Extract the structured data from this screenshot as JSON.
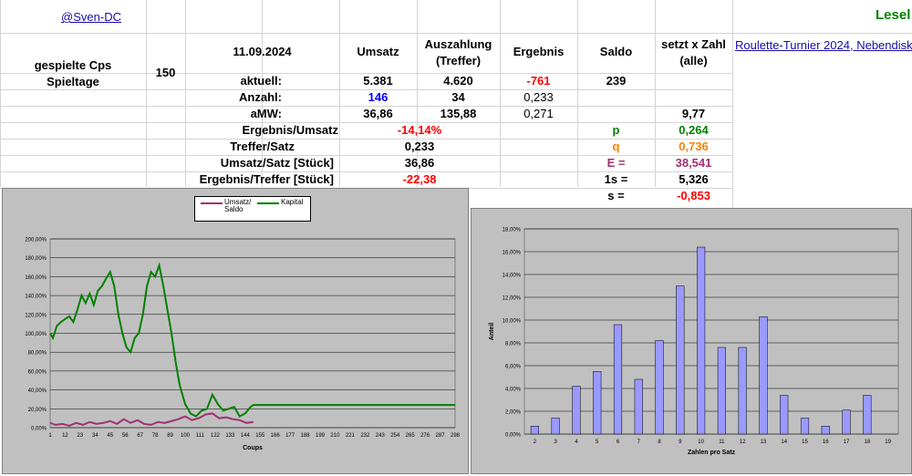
{
  "header": {
    "user_link": "@Sven-DC",
    "lese_label": "Lesel",
    "tournament_link": "Roulette-Turnier 2024, Nebendisk"
  },
  "left_block": {
    "played_label": "gespielte Cps",
    "days_label": "Spieltage",
    "played_value": "150"
  },
  "columns": {
    "date": "11.09.2024",
    "umsatz": "Umsatz",
    "auszahlung_line1": "Auszahlung",
    "auszahlung_line2": "(Treffer)",
    "ergebnis": "Ergebnis",
    "saldo": "Saldo",
    "setzt_line1": "setzt x Zahl",
    "setzt_line2": "(alle)"
  },
  "rows": {
    "aktuell": {
      "label": "aktuell:",
      "umsatz": "5.381",
      "auszahlung": "4.620",
      "ergebnis": "-761",
      "saldo": "239"
    },
    "anzahl": {
      "label": "Anzahl:",
      "umsatz": "146",
      "auszahlung": "34",
      "ergebnis": "0,233"
    },
    "amw": {
      "label": "aMW:",
      "umsatz": "36,86",
      "auszahlung": "135,88",
      "ergebnis": "0,271",
      "setzt": "9,77"
    }
  },
  "stats": [
    {
      "label": "Ergebnis/Umsatz",
      "value": "-14,14%",
      "color": "red"
    },
    {
      "label": "Treffer/Satz",
      "value": "0,233",
      "color": "black"
    },
    {
      "label": "Umsatz/Satz [Stück]",
      "value": "36,86",
      "color": "black"
    },
    {
      "label": "Ergebnis/Treffer [Stück]",
      "value": "-22,38",
      "color": "red"
    }
  ],
  "params": [
    {
      "label": "p",
      "value": "0,264",
      "label_color": "green",
      "value_color": "green"
    },
    {
      "label": "q",
      "value": "0,736",
      "label_color": "orange",
      "value_color": "orange"
    },
    {
      "label": "E =",
      "value": "38,541",
      "label_color": "purple",
      "value_color": "purple"
    },
    {
      "label": "1s =",
      "value": "5,326",
      "label_color": "black",
      "value_color": "black"
    },
    {
      "label": "s =",
      "value": "-0,853",
      "label_color": "black",
      "value_color": "red"
    }
  ],
  "chart_data": [
    {
      "type": "line",
      "xlabel": "Coups",
      "ylabel": "",
      "ylim": [
        0,
        200
      ],
      "y_ticks": [
        "0,00%",
        "20,00%",
        "40,00%",
        "60,00%",
        "80,00%",
        "100,00%",
        "120,00%",
        "140,00%",
        "160,00%",
        "180,00%",
        "200,00%"
      ],
      "x_ticks": [
        "1",
        "12",
        "23",
        "34",
        "45",
        "56",
        "67",
        "78",
        "89",
        "100",
        "111",
        "122",
        "133",
        "144",
        "155",
        "166",
        "177",
        "188",
        "199",
        "210",
        "221",
        "232",
        "243",
        "254",
        "265",
        "276",
        "287",
        "298"
      ],
      "legend": [
        "Umsatz/ Saldo",
        "Kapital"
      ],
      "colors": {
        "Kapital": "#008000",
        "Umsatz/ Saldo": "#a03070"
      },
      "series": [
        {
          "name": "Kapital",
          "x": [
            1,
            3,
            6,
            9,
            12,
            15,
            18,
            21,
            24,
            27,
            30,
            33,
            36,
            39,
            42,
            45,
            48,
            51,
            54,
            57,
            60,
            63,
            66,
            69,
            72,
            75,
            78,
            81,
            84,
            87,
            90,
            93,
            96,
            100,
            104,
            108,
            112,
            116,
            120,
            124,
            128,
            132,
            136,
            140,
            144,
            148,
            150,
            298
          ],
          "values": [
            100,
            95,
            108,
            112,
            115,
            118,
            112,
            125,
            140,
            132,
            142,
            130,
            145,
            150,
            158,
            165,
            150,
            120,
            100,
            85,
            80,
            95,
            100,
            120,
            150,
            165,
            160,
            172,
            150,
            125,
            100,
            70,
            45,
            25,
            15,
            12,
            18,
            20,
            35,
            25,
            18,
            20,
            22,
            12,
            15,
            22,
            24,
            24
          ]
        },
        {
          "name": "Umsatz/ Saldo",
          "x": [
            1,
            5,
            10,
            15,
            20,
            25,
            30,
            35,
            40,
            45,
            50,
            55,
            60,
            65,
            70,
            75,
            80,
            85,
            90,
            95,
            100,
            105,
            110,
            115,
            120,
            125,
            130,
            135,
            140,
            145,
            150
          ],
          "values": [
            5,
            3,
            4,
            2,
            5,
            3,
            6,
            4,
            5,
            7,
            4,
            9,
            5,
            8,
            4,
            3,
            6,
            5,
            7,
            9,
            12,
            8,
            10,
            14,
            15,
            10,
            11,
            9,
            8,
            5,
            6
          ]
        }
      ]
    },
    {
      "type": "bar",
      "xlabel": "Zahlen pro Satz",
      "ylabel": "Anteil",
      "ylim": [
        0,
        18
      ],
      "y_ticks": [
        "0,00%",
        "2,00%",
        "4,00%",
        "6,00%",
        "8,00%",
        "10,00%",
        "12,00%",
        "14,00%",
        "16,00%",
        "18,00%"
      ],
      "categories": [
        "2",
        "3",
        "4",
        "5",
        "6",
        "7",
        "8",
        "9",
        "10",
        "11",
        "12",
        "13",
        "14",
        "15",
        "16",
        "17",
        "18",
        "19"
      ],
      "values": [
        0.7,
        1.4,
        4.2,
        5.5,
        9.6,
        4.8,
        8.2,
        13.0,
        16.4,
        7.6,
        7.6,
        10.3,
        3.4,
        1.4,
        0.7,
        2.1,
        3.4,
        0
      ],
      "bar_color": "#9999ff"
    }
  ]
}
